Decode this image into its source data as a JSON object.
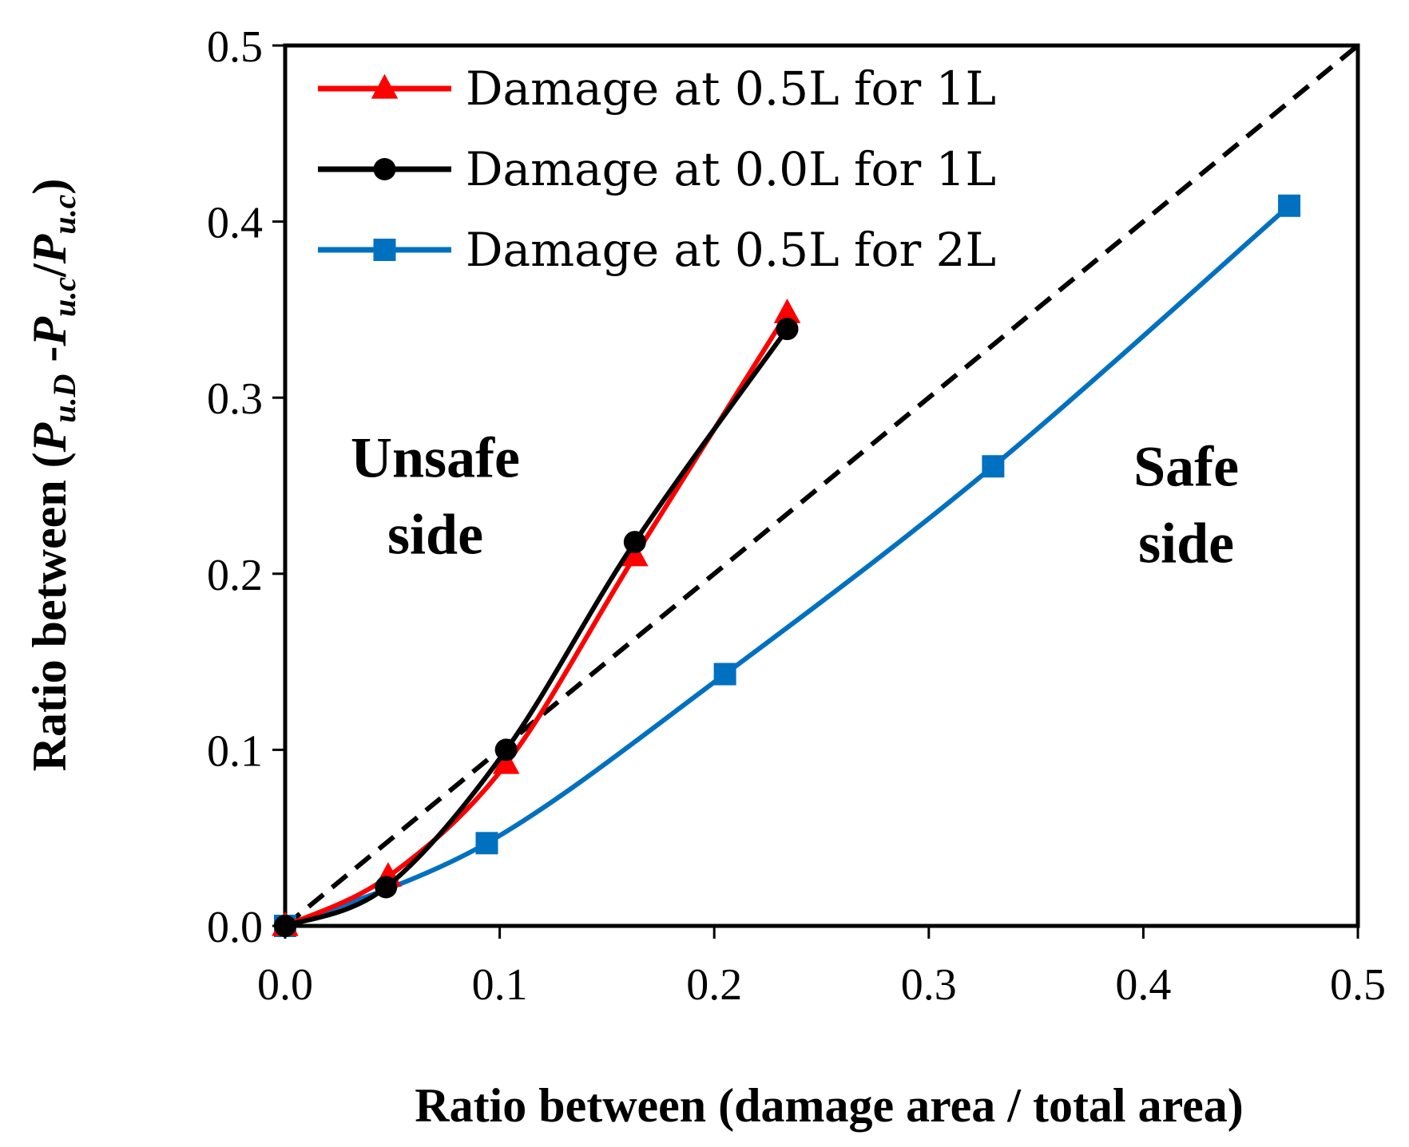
{
  "chart_data": {
    "type": "line",
    "title": "",
    "xlabel": "Ratio between (damage area / total area)",
    "ylabel": {
      "prefix": "Ratio between (",
      "numerator_main": "P",
      "numerator_sub": "u.D",
      "minus": " -",
      "subtrahend_main": "P",
      "subtrahend_sub": "u.c",
      "slash": "/",
      "denominator_main": "P",
      "denominator_sub": "u.c",
      "suffix": ")"
    },
    "xlim": [
      0,
      0.5
    ],
    "ylim": [
      0,
      0.5
    ],
    "xticks": [
      0.0,
      0.1,
      0.2,
      0.3,
      0.4,
      0.5
    ],
    "xtick_labels": [
      "0.0",
      "0.1",
      "0.2",
      "0.3",
      "0.4",
      "0.5"
    ],
    "yticks": [
      0.0,
      0.1,
      0.2,
      0.3,
      0.4,
      0.5
    ],
    "ytick_labels": [
      "0.0",
      "0.1",
      "0.2",
      "0.3",
      "0.4",
      "0.5"
    ],
    "grid": false,
    "legend_position": "top-left",
    "series": [
      {
        "name": "Damage at 0.5L for 1L",
        "color": "#ff0000",
        "marker": "triangle",
        "x": [
          0.0,
          0.048,
          0.103,
          0.163,
          0.234
        ],
        "y": [
          0.0,
          0.028,
          0.092,
          0.21,
          0.348
        ]
      },
      {
        "name": "Damage at 0.0L for 1L",
        "color": "#000000",
        "marker": "circle",
        "x": [
          0.0,
          0.047,
          0.103,
          0.163,
          0.234
        ],
        "y": [
          0.0,
          0.022,
          0.1,
          0.218,
          0.339
        ]
      },
      {
        "name": "Damage at 0.5L for 2L",
        "color": "#0070c0",
        "marker": "square",
        "x": [
          0.0,
          0.094,
          0.205,
          0.33,
          0.468
        ],
        "y": [
          0.0,
          0.047,
          0.143,
          0.261,
          0.409
        ]
      }
    ],
    "reference_line": {
      "x": [
        0.0,
        0.5
      ],
      "y": [
        0.0,
        0.5
      ],
      "style": "dashed",
      "color": "#000000"
    },
    "annotations": [
      {
        "lines": [
          "Unsafe",
          "side"
        ],
        "x": 0.07,
        "y": 0.255
      },
      {
        "lines": [
          "Safe",
          "side"
        ],
        "x": 0.42,
        "y": 0.25
      }
    ]
  }
}
